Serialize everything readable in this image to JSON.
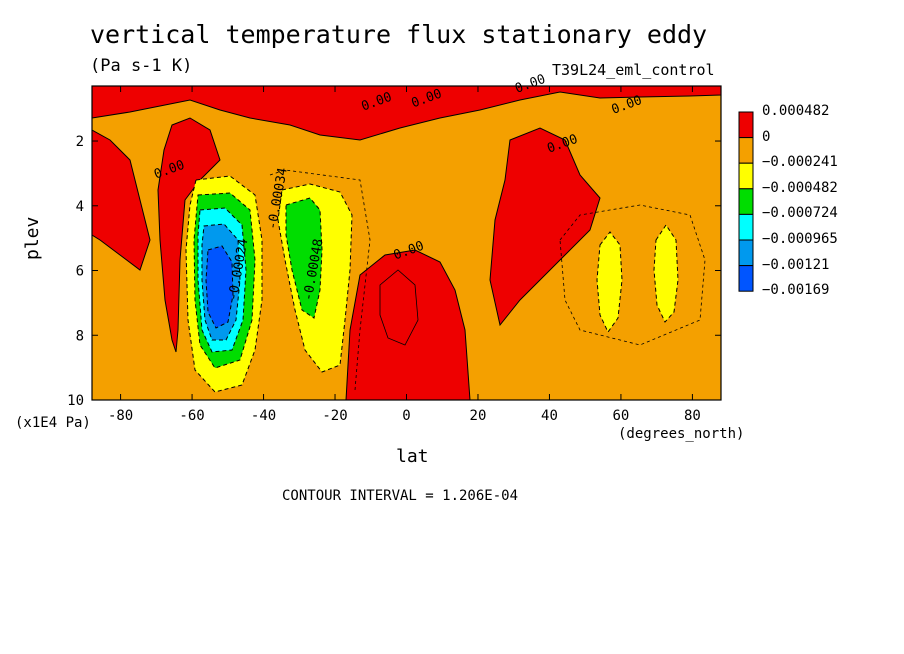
{
  "chart_data": {
    "type": "heatmap",
    "title": "vertical temperature flux stationary eddy",
    "units": "(Pa s-1 K)",
    "run_name": "T39L24_eml_control",
    "xlabel": "lat",
    "xunit": "(degrees_north)",
    "ylabel": "plev",
    "yunit": "(x1E4 Pa)",
    "xlim": [
      -88,
      88
    ],
    "ylim": [
      0.3,
      10
    ],
    "y_reversed": true,
    "x_ticks": [
      -80,
      -60,
      -40,
      -20,
      0,
      20,
      40,
      60,
      80
    ],
    "y_ticks": [
      2,
      4,
      6,
      8,
      10
    ],
    "contour_interval_text": "CONTOUR INTERVAL = 1.206E-04",
    "legend": {
      "position": "right",
      "levels": [
        {
          "label": "0.000482",
          "color": "#ee0000"
        },
        {
          "label": "0",
          "color": "#f4a000"
        },
        {
          "label": "−0.000241",
          "color": "#ffff00"
        },
        {
          "label": "−0.000482",
          "color": "#00dd00"
        },
        {
          "label": "−0.000724",
          "color": "#00ffff"
        },
        {
          "label": "−0.000965",
          "color": "#0099ee"
        },
        {
          "label": "−0.00121",
          "color": "#0055ff"
        },
        {
          "label": "−0.00169",
          "color": ""
        }
      ]
    },
    "contour_labels": [
      {
        "text": "0.00",
        "x": -8,
        "y": 0.9
      },
      {
        "text": "0.00",
        "x": 6,
        "y": 0.8
      },
      {
        "text": "0.00",
        "x": 35,
        "y": 0.35
      },
      {
        "text": "0.00",
        "x": 62,
        "y": 1.0
      },
      {
        "text": "0.00",
        "x": 44,
        "y": 2.2
      },
      {
        "text": "0.00",
        "x": -66,
        "y": 3.0
      },
      {
        "text": "0.00",
        "x": 1,
        "y": 5.5
      },
      {
        "text": "-0.00034",
        "x": -35,
        "y": 3.8
      },
      {
        "text": "-0.00048",
        "x": -25,
        "y": 6.0
      },
      {
        "text": "-0.00024",
        "x": -46,
        "y": 6.0
      }
    ]
  }
}
